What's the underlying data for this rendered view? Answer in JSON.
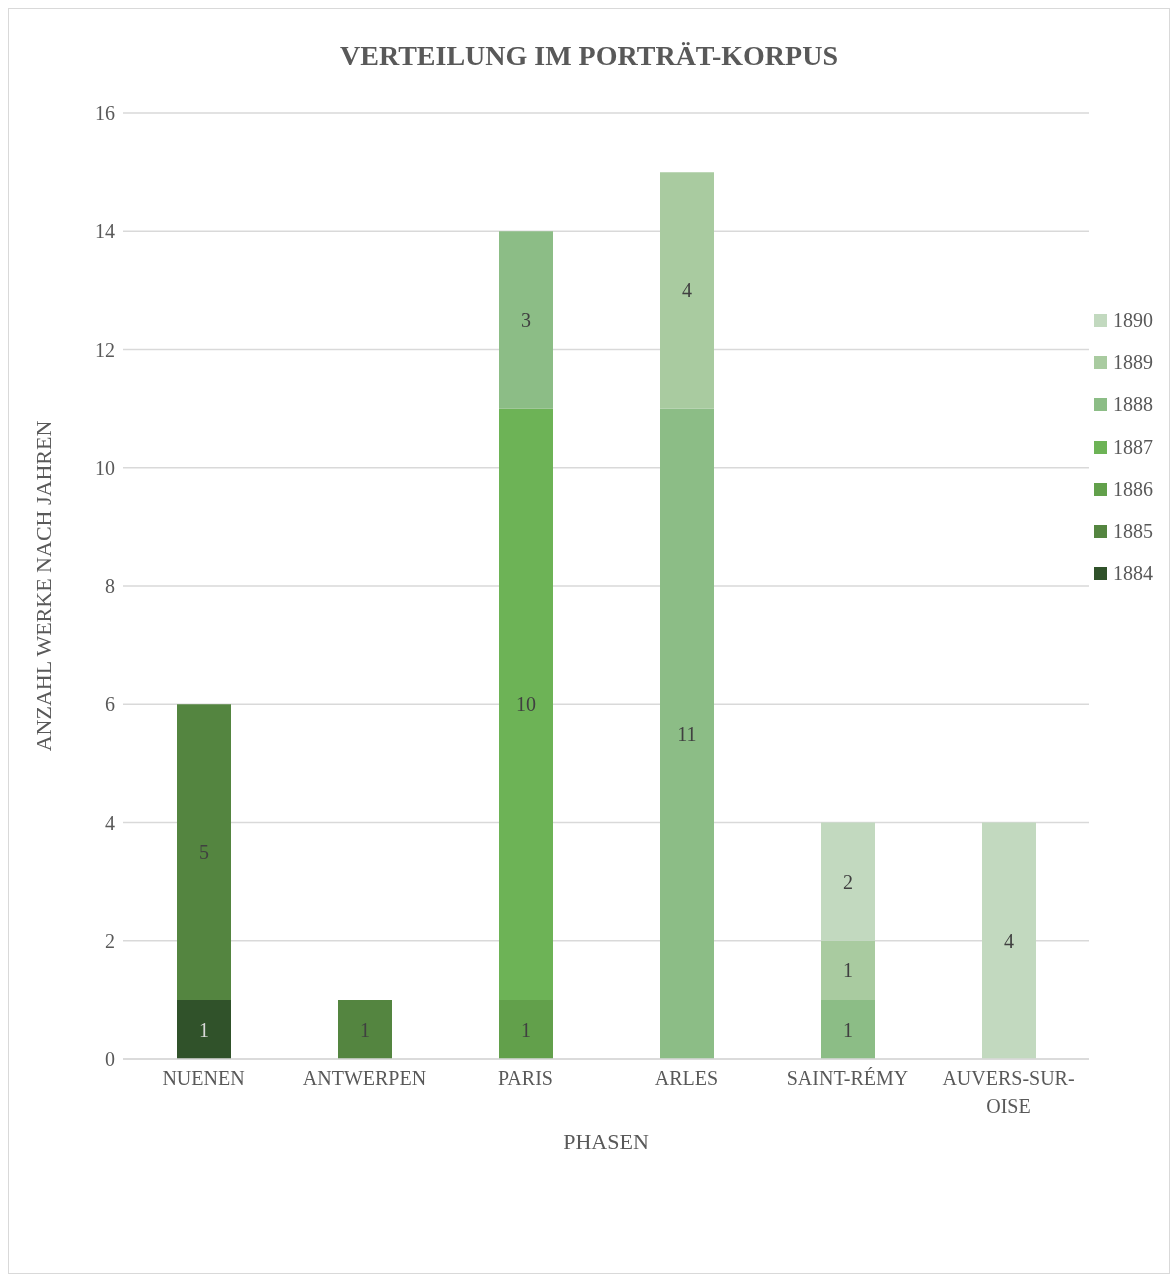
{
  "chart_data": {
    "type": "bar",
    "title": "VERTEILUNG IM PORTRÄT-KORPUS",
    "xlabel": "PHASEN",
    "ylabel": "ANZAHL WERKE NACH JAHREN",
    "categories": [
      "NUENEN",
      "ANTWERPEN",
      "PARIS",
      "ARLES",
      "SAINT-RÉMY",
      "AUVERS-SUR-OISE"
    ],
    "series": [
      {
        "name": "1884",
        "color": "#30522a",
        "values": [
          1,
          null,
          null,
          null,
          null,
          null
        ]
      },
      {
        "name": "1885",
        "color": "#548540",
        "values": [
          5,
          1,
          null,
          null,
          null,
          null
        ]
      },
      {
        "name": "1886",
        "color": "#62a04b",
        "values": [
          null,
          null,
          1,
          null,
          null,
          null
        ]
      },
      {
        "name": "1887",
        "color": "#6db356",
        "values": [
          null,
          null,
          10,
          null,
          null,
          null
        ]
      },
      {
        "name": "1888",
        "color": "#8cbd86",
        "values": [
          null,
          null,
          3,
          11,
          1,
          null
        ]
      },
      {
        "name": "1889",
        "color": "#a9cba0",
        "values": [
          null,
          null,
          null,
          4,
          1,
          null
        ]
      },
      {
        "name": "1890",
        "color": "#c2d9bf",
        "values": [
          null,
          null,
          null,
          null,
          2,
          4
        ]
      }
    ],
    "stacked": true,
    "ylim": [
      0,
      16
    ],
    "yticks": [
      0,
      2,
      4,
      6,
      8,
      10,
      12,
      14,
      16
    ],
    "grid": "y",
    "legend": "right",
    "data_labels": true
  }
}
